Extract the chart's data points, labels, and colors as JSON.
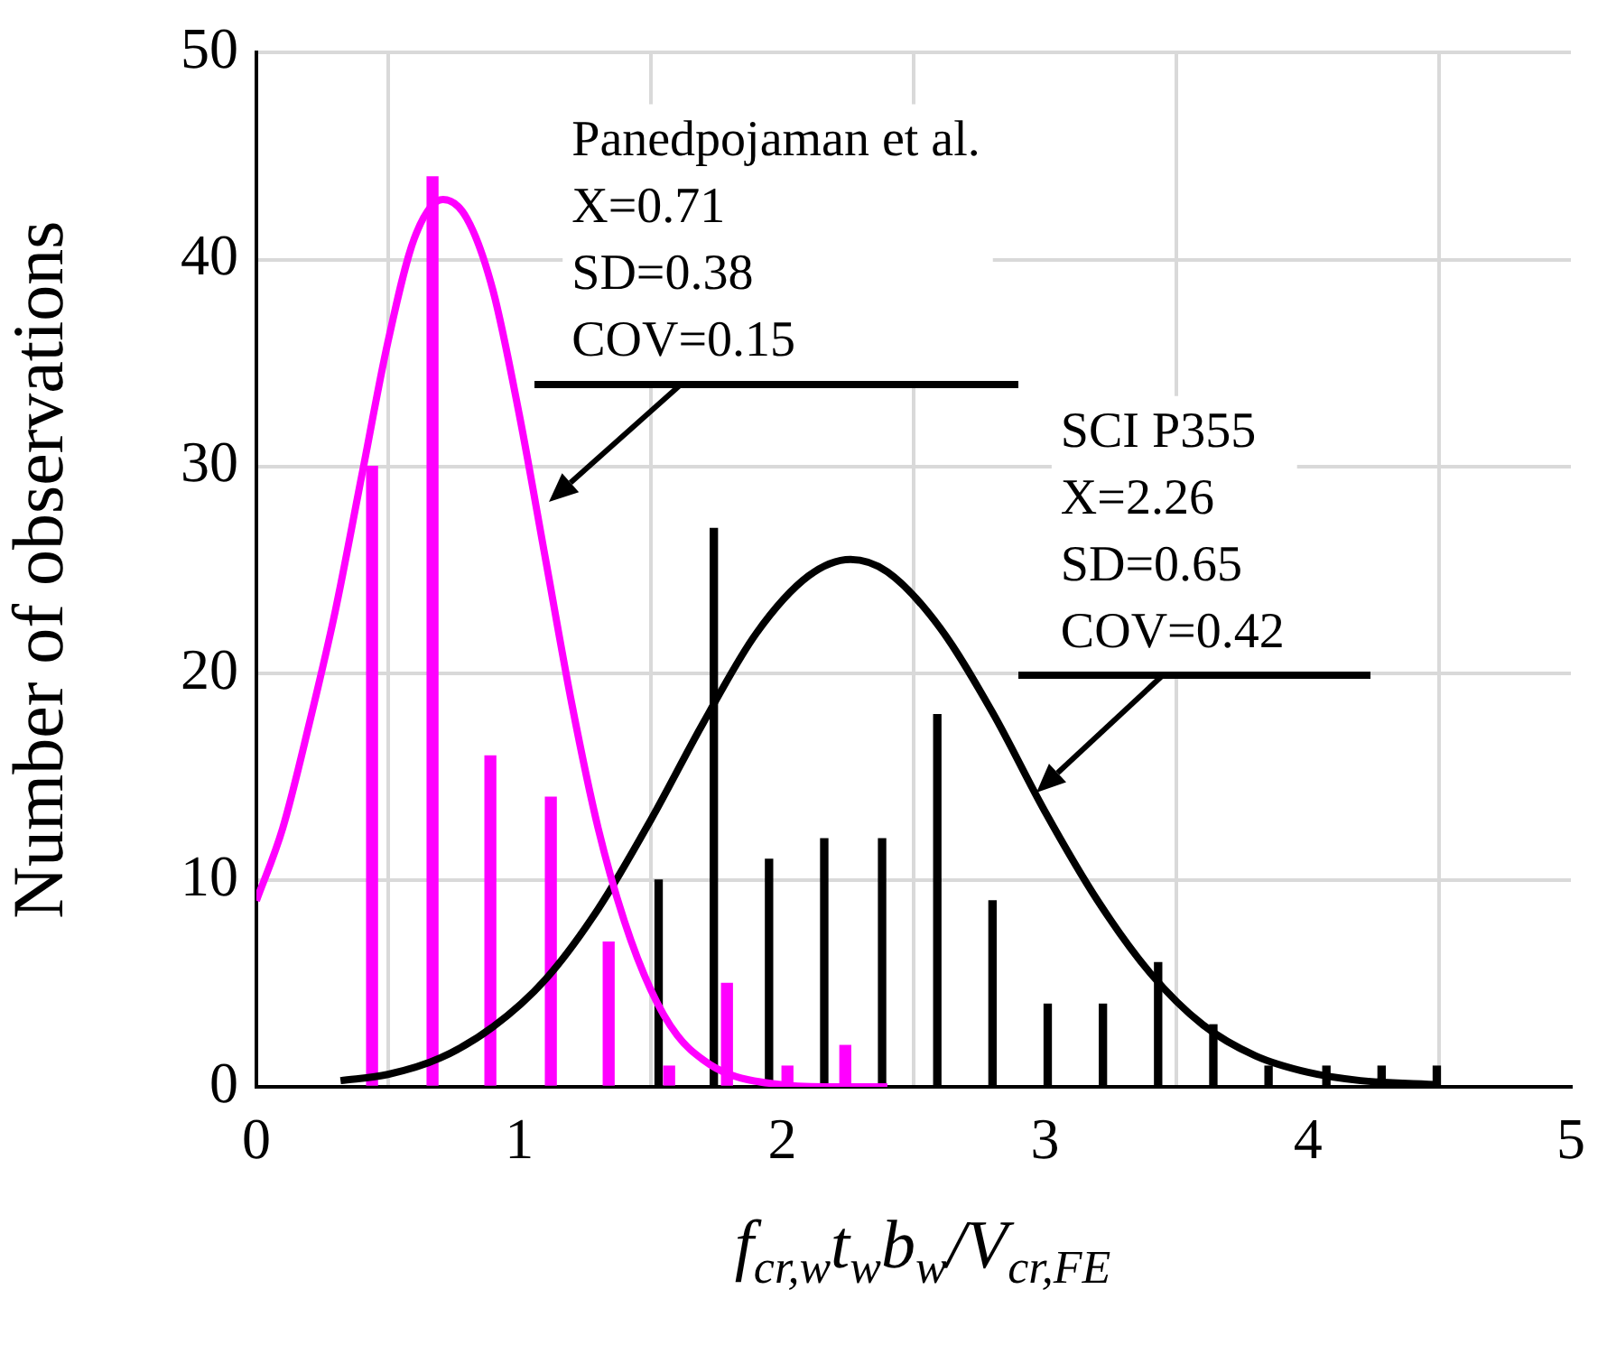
{
  "chart_data": {
    "type": "bar",
    "xlabel": "f$_{cr,w}$t$_{w}$b$_{w}$/V$_{cr,FE}$",
    "ylabel": "Number of observations",
    "xlim": [
      0,
      5
    ],
    "xticks": [
      0,
      1,
      2,
      3,
      4,
      5
    ],
    "ylim": [
      0,
      50
    ],
    "yticks": [
      0,
      10,
      20,
      30,
      40,
      50
    ],
    "grid": true,
    "legend": false,
    "series": [
      {
        "color": "#ff00ff",
        "x": [
          0.44,
          0.67,
          0.89,
          1.12,
          1.34,
          1.57,
          1.79,
          2.02,
          2.24
        ],
        "values": [
          30,
          44,
          16,
          14,
          7,
          1,
          5,
          1,
          2
        ]
      },
      {
        "color": "#000000",
        "x": [
          1.53,
          1.74,
          1.95,
          2.16,
          2.38,
          2.59,
          2.8,
          3.01,
          3.22,
          3.43,
          3.64,
          3.85,
          4.07,
          4.28,
          4.49
        ],
        "values": [
          10,
          27,
          11,
          12,
          12,
          18,
          9,
          4,
          4,
          6,
          3,
          1,
          1,
          1,
          1
        ]
      },
      {
        "type": "line",
        "color": "#ff00ff",
        "x": [
          0,
          0.1,
          0.2,
          0.3,
          0.4,
          0.5,
          0.6,
          0.71,
          0.8,
          0.9,
          1.0,
          1.1,
          1.2,
          1.3,
          1.4,
          1.5,
          1.6,
          1.7,
          1.8,
          2.0,
          2.2,
          2.4
        ],
        "values": [
          9,
          12.5,
          17.5,
          23,
          29.5,
          36,
          41,
          42.9,
          42,
          38.5,
          32.5,
          25.5,
          18.5,
          12.5,
          8,
          4.7,
          2.5,
          1.3,
          0.6,
          0.1,
          0,
          0
        ]
      },
      {
        "type": "line",
        "color": "#000000",
        "x": [
          0.32,
          0.5,
          0.7,
          0.9,
          1.1,
          1.3,
          1.5,
          1.7,
          1.9,
          2.1,
          2.26,
          2.4,
          2.6,
          2.8,
          3.0,
          3.2,
          3.4,
          3.6,
          3.8,
          4.0,
          4.2,
          4.5
        ],
        "values": [
          0.3,
          0.6,
          1.4,
          2.9,
          5.2,
          8.6,
          12.9,
          17.6,
          21.9,
          24.7,
          25.5,
          24.9,
          22.2,
          18.1,
          13.3,
          9.0,
          5.5,
          3.0,
          1.5,
          0.7,
          0.3,
          0.1
        ]
      }
    ],
    "annotations": [
      {
        "text": "Panedpojaman et al.\nX=0.71\nSD=0.38\nCOV=0.15",
        "x": 1.11,
        "y": 28.3
      },
      {
        "text": "SCI P355\nX=2.26\nSD=0.65\nCOV=0.42",
        "x": 2.97,
        "y": 14.2
      }
    ]
  }
}
